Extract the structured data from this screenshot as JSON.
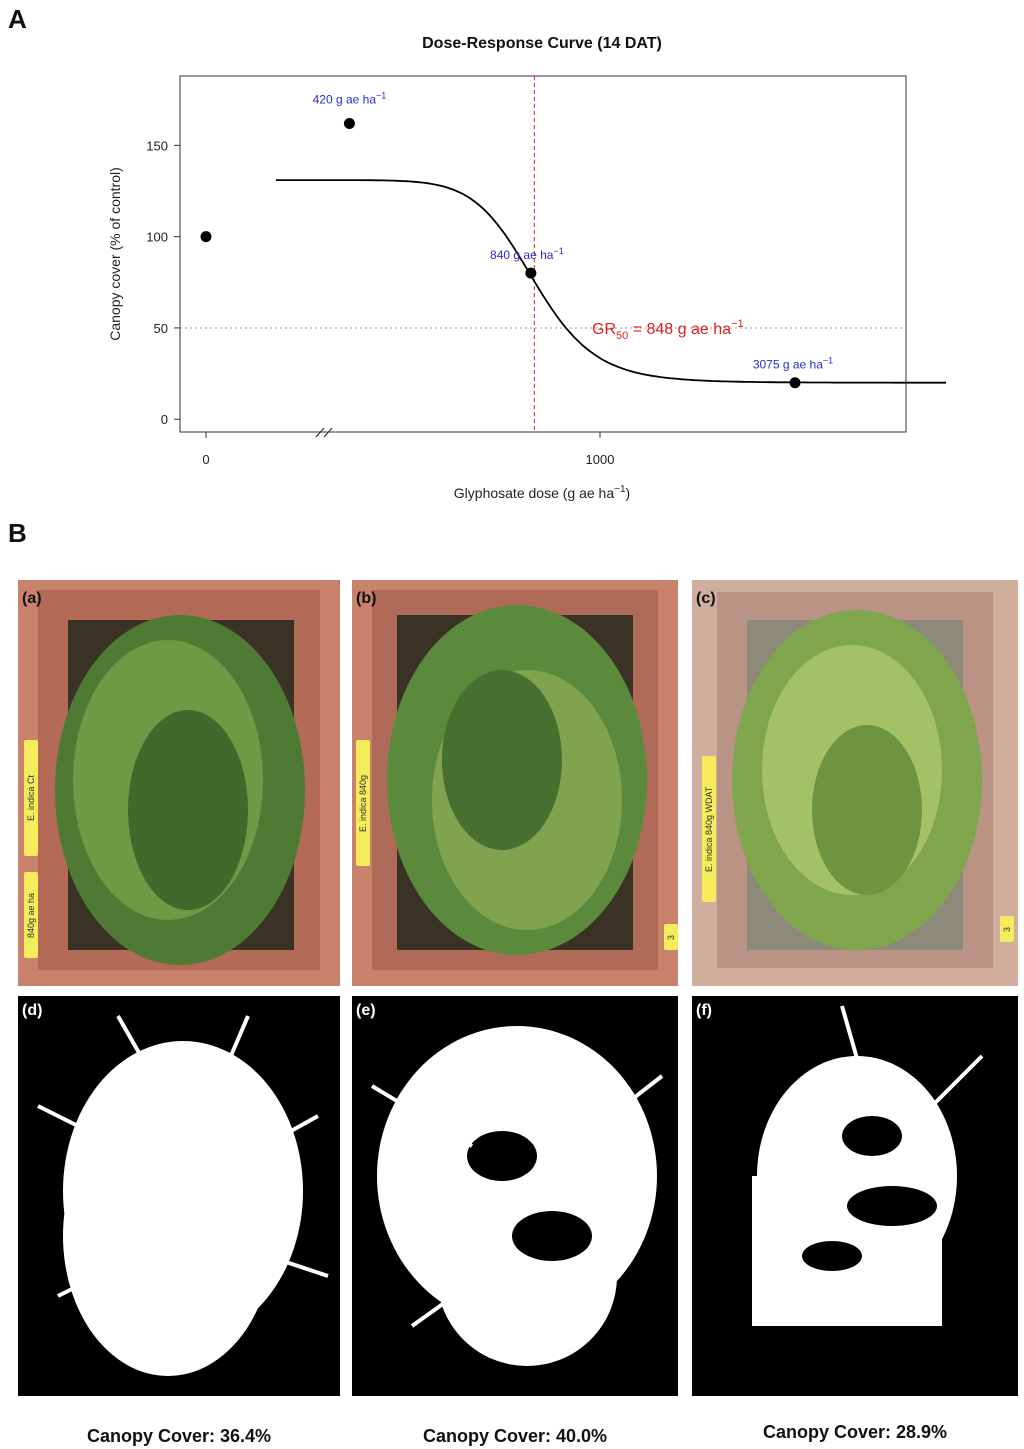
{
  "panel_letters": {
    "a": "A",
    "b": "B"
  },
  "chart_data": {
    "type": "scatter",
    "title": "Dose-Response Curve (14 DAT)",
    "xlabel": "Glyphosate dose (g ae ha",
    "xlabel_sup": "−1",
    "xlabel_close": ")",
    "ylabel": "Canopy cover (% of control)",
    "xticks": [
      {
        "value": 0,
        "label": "0"
      },
      {
        "value": 1000,
        "label": "1000"
      }
    ],
    "yticks": [
      0,
      50,
      100,
      150
    ],
    "ylim": [
      -7,
      188
    ],
    "x_axis_break": true,
    "points": [
      {
        "dose": 0,
        "cover": 100,
        "label": "",
        "label_sup": ""
      },
      {
        "dose": 420,
        "cover": 162,
        "label": "420 g ae ha",
        "label_sup": "−1"
      },
      {
        "dose": 840,
        "cover": 80,
        "label": "840 g ae ha",
        "label_sup": "−1"
      },
      {
        "dose": 3075,
        "cover": 20,
        "label": "3075 g ae ha",
        "label_sup": "−1"
      }
    ],
    "fitted_curve": {
      "upper": 131,
      "lower": 20,
      "gr50": 848,
      "slope": 12
    },
    "reference_lines": {
      "horizontal_y": 50,
      "vertical_x": 848
    },
    "gr50_annotation": {
      "prefix": "GR",
      "sub": "50",
      "text": " = 848 g ae ha",
      "sup": "−1"
    },
    "colors": {
      "points": "#000000",
      "curve": "#000000",
      "point_labels": "#2b2bd6",
      "gr50": "#e02020",
      "ref_h": "#9a9a9a"
    }
  },
  "photos": [
    {
      "label": "(a)",
      "tag1": "E. indica Ct",
      "tag2": "840g ae ha"
    },
    {
      "label": "(b)",
      "tag1": "E. indica 840g",
      "tag2": "3"
    },
    {
      "label": "(c)",
      "tag1": "E. indica 840g WDAT",
      "tag2": "3"
    }
  ],
  "masks": [
    {
      "label": "(d)",
      "caption": "Canopy Cover: 36.4%",
      "cover": 36.4
    },
    {
      "label": "(e)",
      "caption": "Canopy Cover: 40.0%",
      "cover": 40.0
    },
    {
      "label": "(f)",
      "caption": "Canopy Cover: 28.9%",
      "cover": 28.9
    }
  ]
}
